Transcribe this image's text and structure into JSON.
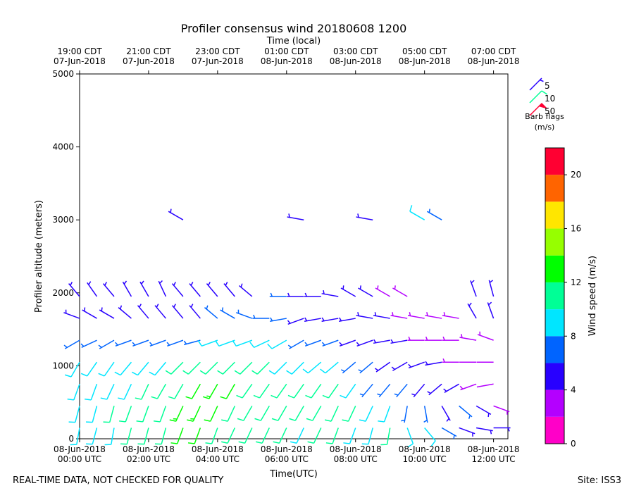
{
  "chart_data": {
    "type": "barbs",
    "title": "Profiler consensus wind 20180608 1200",
    "top_axis_label": "Time (local)",
    "xlabel": "Time(UTC)",
    "ylabel": "Profiler altitude (meters)",
    "xlim": [
      "2018-06-08 00:00",
      "2018-06-08 12:25"
    ],
    "xticks": [
      {
        "value": "2018-06-08 00:00",
        "label": "08-Jun-2018\n00:00 UTC"
      },
      {
        "value": "2018-06-08 02:00",
        "label": "08-Jun-2018\n02:00 UTC"
      },
      {
        "value": "2018-06-08 04:00",
        "label": "08-Jun-2018\n04:00 UTC"
      },
      {
        "value": "2018-06-08 06:00",
        "label": "08-Jun-2018\n06:00 UTC"
      },
      {
        "value": "2018-06-08 08:00",
        "label": "08-Jun-2018\n08:00 UTC"
      },
      {
        "value": "2018-06-08 10:00",
        "label": "08-Jun-2018\n10:00 UTC"
      },
      {
        "value": "2018-06-08 12:00",
        "label": "08-Jun-2018\n12:00 UTC"
      }
    ],
    "top_xticks": [
      {
        "value": "2018-06-08 00:00",
        "label": "19:00 CDT\n07-Jun-2018"
      },
      {
        "value": "2018-06-08 02:00",
        "label": "21:00 CDT\n07-Jun-2018"
      },
      {
        "value": "2018-06-08 04:00",
        "label": "23:00 CDT\n07-Jun-2018"
      },
      {
        "value": "2018-06-08 06:00",
        "label": "01:00 CDT\n08-Jun-2018"
      },
      {
        "value": "2018-06-08 08:00",
        "label": "03:00 CDT\n08-Jun-2018"
      },
      {
        "value": "2018-06-08 10:00",
        "label": "05:00 CDT\n08-Jun-2018"
      },
      {
        "value": "2018-06-08 12:00",
        "label": "07:00 CDT\n08-Jun-2018"
      }
    ],
    "ylim": [
      0,
      5000
    ],
    "yticks": [
      0,
      1000,
      2000,
      3000,
      4000,
      5000
    ],
    "levels": [
      150,
      450,
      750,
      1050,
      1350,
      1650,
      1950,
      3000
    ],
    "columns": [
      {
        "time": "2018-06-08 00:00",
        "speed": [
          9,
          9,
          9,
          9,
          6,
          5,
          5,
          null
        ],
        "dir": [
          190,
          195,
          200,
          210,
          240,
          290,
          320,
          null
        ]
      },
      {
        "time": "2018-06-08 00:30",
        "speed": [
          9,
          9,
          9,
          8,
          6,
          5,
          5,
          null
        ],
        "dir": [
          195,
          195,
          200,
          215,
          245,
          300,
          325,
          null
        ]
      },
      {
        "time": "2018-06-08 01:00",
        "speed": [
          9,
          10,
          9,
          8,
          6,
          5,
          5,
          null
        ],
        "dir": [
          190,
          195,
          205,
          215,
          240,
          300,
          320,
          null
        ]
      },
      {
        "time": "2018-06-08 01:30",
        "speed": [
          10,
          10,
          9,
          8,
          6,
          5,
          5,
          null
        ],
        "dir": [
          195,
          200,
          205,
          220,
          250,
          310,
          330,
          null
        ]
      },
      {
        "time": "2018-06-08 02:00",
        "speed": [
          11,
          10,
          10,
          9,
          6,
          5,
          4,
          null
        ],
        "dir": [
          195,
          200,
          205,
          220,
          250,
          320,
          330,
          null
        ]
      },
      {
        "time": "2018-06-08 02:30",
        "speed": [
          11,
          11,
          10,
          9,
          7,
          5,
          4,
          null
        ],
        "dir": [
          195,
          200,
          210,
          220,
          250,
          320,
          335,
          null
        ]
      },
      {
        "time": "2018-06-08 03:00",
        "speed": [
          12,
          13,
          11,
          10,
          7,
          5,
          4,
          4
        ],
        "dir": [
          200,
          205,
          210,
          225,
          250,
          320,
          320,
          300
        ]
      },
      {
        "time": "2018-06-08 03:30",
        "speed": [
          12,
          13,
          12,
          10,
          7,
          5,
          4,
          null
        ],
        "dir": [
          200,
          205,
          210,
          225,
          255,
          320,
          320,
          null
        ]
      },
      {
        "time": "2018-06-08 04:00",
        "speed": [
          11,
          12,
          13,
          11,
          8,
          6,
          5,
          null
        ],
        "dir": [
          200,
          205,
          210,
          225,
          250,
          310,
          320,
          null
        ]
      },
      {
        "time": "2018-06-08 04:30",
        "speed": [
          11,
          11,
          12,
          11,
          8,
          6,
          5,
          null
        ],
        "dir": [
          205,
          205,
          210,
          225,
          250,
          300,
          320,
          null
        ]
      },
      {
        "time": "2018-06-08 05:00",
        "speed": [
          11,
          11,
          11,
          10,
          8,
          7,
          5,
          null
        ],
        "dir": [
          205,
          210,
          215,
          225,
          250,
          290,
          310,
          null
        ]
      },
      {
        "time": "2018-06-08 05:30",
        "speed": [
          10,
          11,
          11,
          10,
          9,
          7,
          null,
          null
        ],
        "dir": [
          205,
          210,
          215,
          225,
          245,
          270,
          null,
          null
        ]
      },
      {
        "time": "2018-06-08 06:00",
        "speed": [
          10,
          10,
          10,
          9,
          8,
          7,
          6,
          null
        ],
        "dir": [
          205,
          210,
          215,
          225,
          240,
          260,
          270,
          null
        ]
      },
      {
        "time": "2018-06-08 06:30",
        "speed": [
          9,
          10,
          10,
          9,
          7,
          5,
          5,
          4
        ],
        "dir": [
          205,
          210,
          215,
          225,
          240,
          250,
          270,
          280
        ]
      },
      {
        "time": "2018-06-08 07:00",
        "speed": [
          10,
          11,
          11,
          8,
          6,
          4,
          5,
          null
        ],
        "dir": [
          205,
          210,
          215,
          230,
          250,
          260,
          270,
          null
        ]
      },
      {
        "time": "2018-06-08 07:30",
        "speed": [
          10,
          11,
          10,
          8,
          6,
          4,
          4,
          null
        ],
        "dir": [
          200,
          205,
          215,
          230,
          250,
          260,
          280,
          null
        ]
      },
      {
        "time": "2018-06-08 08:00",
        "speed": [
          9,
          10,
          8,
          6,
          5,
          4,
          5,
          null
        ],
        "dir": [
          200,
          205,
          215,
          230,
          250,
          260,
          300,
          null
        ]
      },
      {
        "time": "2018-06-08 08:30",
        "speed": [
          9,
          9,
          7,
          6,
          5,
          4,
          4,
          5
        ],
        "dir": [
          195,
          205,
          220,
          230,
          250,
          280,
          300,
          280
        ]
      },
      {
        "time": "2018-06-08 09:00",
        "speed": [
          10,
          9,
          6,
          5,
          5,
          4,
          3,
          null
        ],
        "dir": [
          190,
          200,
          220,
          235,
          260,
          280,
          300,
          null
        ]
      },
      {
        "time": "2018-06-08 09:30",
        "speed": [
          9,
          7,
          6,
          5,
          4,
          3,
          3,
          null
        ],
        "dir": [
          160,
          190,
          220,
          240,
          260,
          280,
          300,
          null
        ]
      },
      {
        "time": "2018-06-08 10:00",
        "speed": [
          8,
          6,
          5,
          4,
          3,
          3,
          null,
          8
        ],
        "dir": [
          140,
          170,
          220,
          250,
          270,
          280,
          null,
          300
        ]
      },
      {
        "time": "2018-06-08 10:30",
        "speed": [
          6,
          5,
          5,
          4,
          3,
          3,
          null,
          7
        ],
        "dir": [
          120,
          150,
          230,
          260,
          270,
          280,
          null,
          300
        ]
      },
      {
        "time": "2018-06-08 11:00",
        "speed": [
          5,
          6,
          4,
          3,
          3,
          3,
          null,
          null
        ],
        "dir": [
          110,
          130,
          240,
          270,
          270,
          280,
          null,
          null
        ]
      },
      {
        "time": "2018-06-08 11:30",
        "speed": [
          5,
          5,
          3,
          2,
          3,
          4,
          5,
          null
        ],
        "dir": [
          100,
          120,
          250,
          270,
          280,
          330,
          340,
          null
        ]
      },
      {
        "time": "2018-06-08 12:00",
        "speed": [
          4,
          3,
          2,
          2,
          3,
          4,
          5,
          null
        ],
        "dir": [
          90,
          110,
          260,
          270,
          290,
          340,
          345,
          null
        ]
      }
    ],
    "colorbar": {
      "label": "Wind speed (m/s)",
      "bounds": [
        0,
        2,
        4,
        6,
        8,
        10,
        12,
        14,
        16,
        18,
        20,
        22
      ],
      "colors": [
        "#ff00c8",
        "#b400ff",
        "#2800ff",
        "#0064ff",
        "#00e6ff",
        "#00ff96",
        "#00ff00",
        "#96ff00",
        "#ffe600",
        "#ff6400",
        "#ff0032"
      ],
      "ticks": [
        0,
        4,
        8,
        12,
        16,
        20
      ]
    },
    "legend": {
      "title": "Barb flags\n(m/s)",
      "entries": [
        {
          "value": 5,
          "color": "#2800ff"
        },
        {
          "value": 10,
          "color": "#00ff96"
        },
        {
          "value": 50,
          "color": "#ff0032"
        }
      ]
    },
    "footer_left": "REAL-TIME DATA, NOT CHECKED FOR QUALITY",
    "footer_right": "Site: ISS3"
  }
}
